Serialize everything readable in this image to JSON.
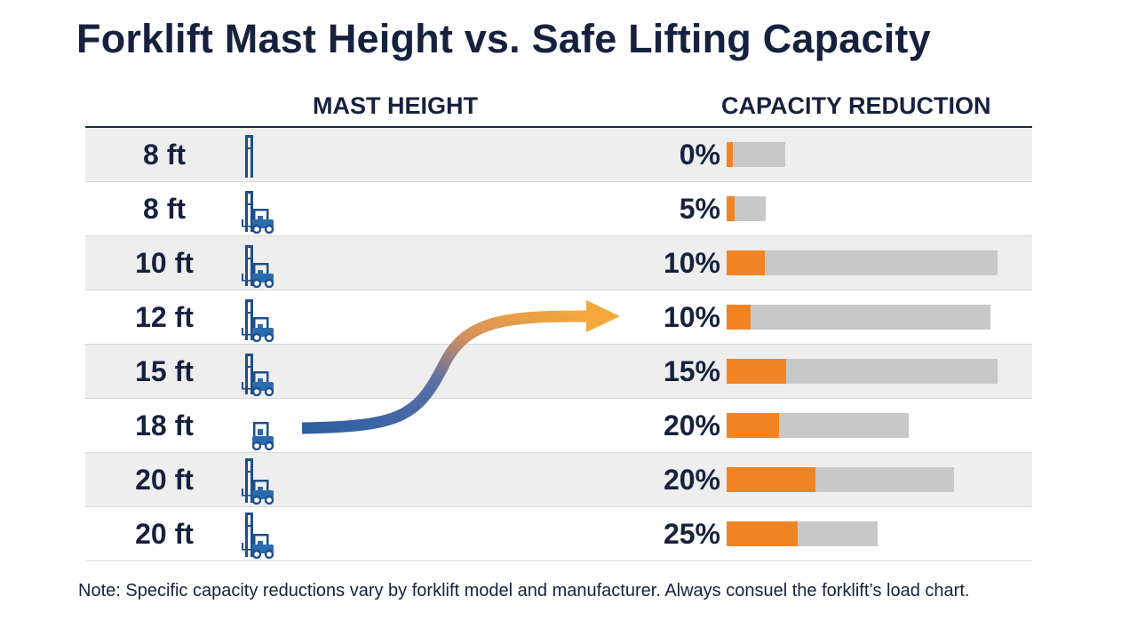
{
  "title": "Forklift Mast Height vs. Safe Lifting Capacity",
  "headers": {
    "mast": "MAST HEIGHT",
    "capacity": "CAPACITY REDUCTION"
  },
  "note": {
    "label": "Note:",
    "text": " Specific capacity reductions vary by forklift model and manufacturer. Always consuel the forklift’s load chart."
  },
  "colors": {
    "accent": "#f08424",
    "track": "#c8c8c8",
    "text": "#16213e",
    "forklift": "#2b6cb0"
  },
  "chart_data": {
    "type": "table",
    "title": "Forklift Mast Height vs. Safe Lifting Capacity",
    "columns": [
      "MAST HEIGHT",
      "CAPACITY REDUCTION"
    ],
    "rows": [
      {
        "height": "8 ft",
        "reduction": "0%",
        "value": 0,
        "fill_pct": 10,
        "track_pct": 100,
        "icon": "forklift-mast-only-icon"
      },
      {
        "height": "8 ft",
        "reduction": "5%",
        "value": 5,
        "fill_pct": 20,
        "track_pct": 66,
        "icon": "forklift-icon"
      },
      {
        "height": "10 ft",
        "reduction": "10%",
        "value": 10,
        "fill_pct": 14,
        "track_pct": 460,
        "icon": "forklift-icon"
      },
      {
        "height": "12 ft",
        "reduction": "10%",
        "value": 10,
        "fill_pct": 9,
        "track_pct": 448,
        "icon": "forklift-icon"
      },
      {
        "height": "15 ft",
        "reduction": "15%",
        "value": 15,
        "fill_pct": 22,
        "track_pct": 460,
        "icon": "forklift-icon"
      },
      {
        "height": "18 ft",
        "reduction": "20%",
        "value": 20,
        "fill_pct": 29,
        "track_pct": 308,
        "icon": "forklift-cab-icon"
      },
      {
        "height": "20 ft",
        "reduction": "20%",
        "value": 20,
        "fill_pct": 39,
        "track_pct": 386,
        "icon": "forklift-tall-mast-icon"
      },
      {
        "height": "20 ft",
        "reduction": "25%",
        "value": 25,
        "fill_pct": 47,
        "track_pct": 256,
        "icon": "forklift-tall-mast-icon"
      }
    ]
  }
}
